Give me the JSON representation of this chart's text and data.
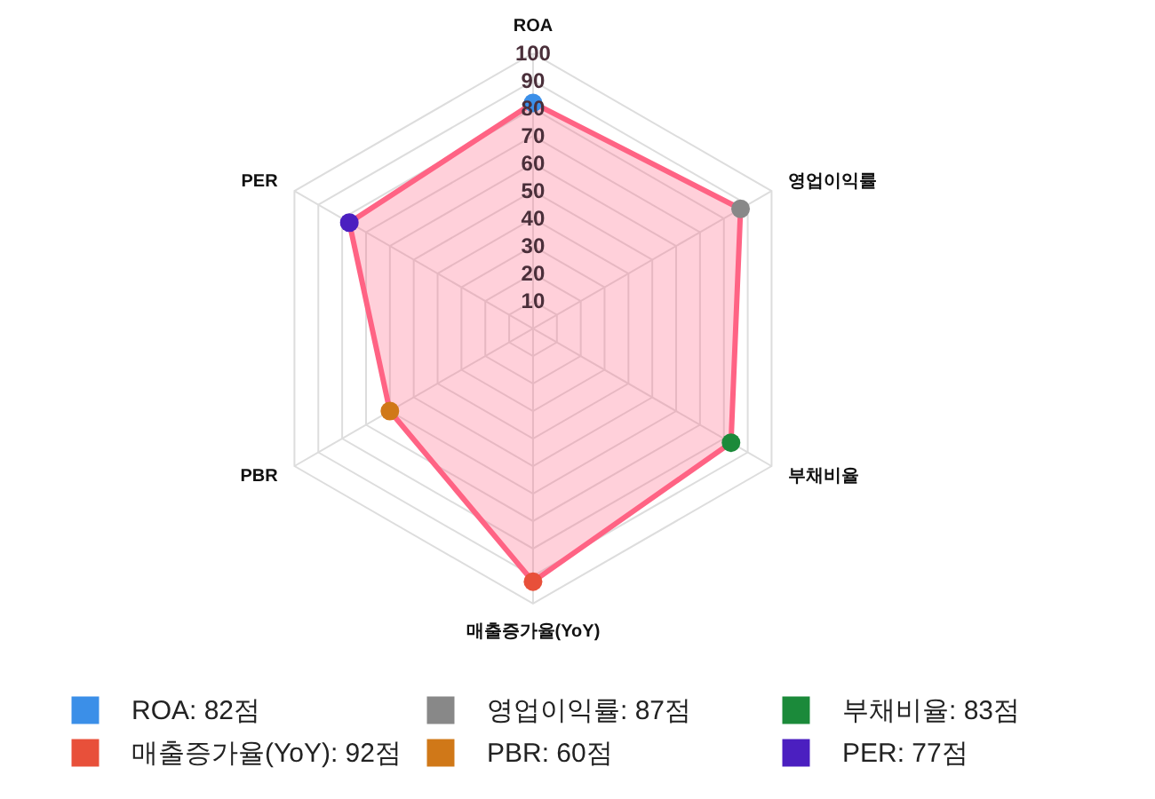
{
  "chart_data": {
    "type": "radar",
    "categories": [
      "ROA",
      "영업이익률",
      "부채비율",
      "매출증가율(YoY)",
      "PBR",
      "PER"
    ],
    "series": [
      {
        "color": "#ff6384",
        "colors": [
          "#3b8fe8",
          "#888888",
          "#1b8a3a",
          "#e8503a",
          "#d07818",
          "#4b1fc0"
        ],
        "values": [
          82,
          87,
          83,
          92,
          60,
          77
        ]
      }
    ],
    "annotations": [
      "ROA: 82점",
      "영업이익률: 87점",
      "부채비율: 83점",
      "매출증가율(YoY): 92점",
      "PBR: 60점",
      "PER: 77점"
    ],
    "ylim": [
      0,
      100
    ],
    "yticks": [
      10,
      20,
      30,
      40,
      50,
      60,
      70,
      80,
      90,
      100
    ],
    "grid": true,
    "marker": "circle"
  }
}
